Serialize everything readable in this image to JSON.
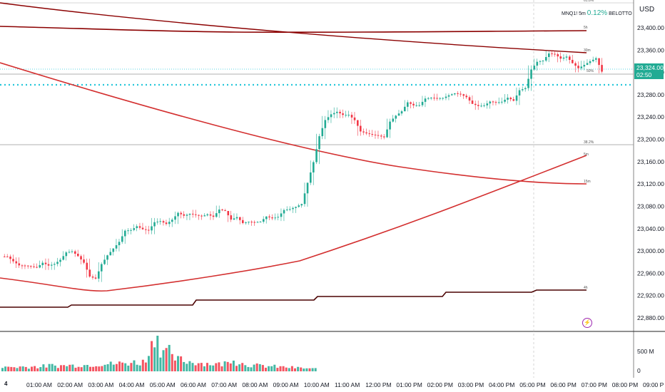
{
  "chart_data": {
    "type": "candlestick",
    "symbol": "MNQ1! 5m",
    "change_pct": "0.12%",
    "indicator": "BELOTTO",
    "currency": "USD",
    "last_price": "23,324.00",
    "countdown": "02:50",
    "y_ticks": [
      "23,400.00",
      "23,360.00",
      "23,320.00",
      "23,280.00",
      "23,240.00",
      "23,200.00",
      "23,160.00",
      "23,120.00",
      "23,080.00",
      "23,040.00",
      "23,000.00",
      "22,960.00",
      "22,920.00",
      "22,880.00"
    ],
    "volume_ticks": [
      "500 M",
      "0"
    ],
    "x_ticks": [
      "4",
      "01:00 AM",
      "02:00 AM",
      "03:00 AM",
      "04:00 AM",
      "05:00 AM",
      "06:00 AM",
      "07:00 AM",
      "08:00 AM",
      "09:00 AM",
      "10:00 AM",
      "11:00 AM",
      "12:00 PM",
      "01:00 PM",
      "02:00 PM",
      "03:00 PM",
      "04:00 PM",
      "05:00 PM",
      "06:00 PM",
      "07:00 PM",
      "08:00 PM",
      "09:00 P"
    ],
    "level_labels": {
      "top": "61.8%",
      "fib382": "38.2%",
      "fib50": "50%"
    },
    "ma_labels": [
      "5h",
      "30m",
      "5m",
      "15m",
      "4h"
    ],
    "price_path": [
      [
        0,
        22990
      ],
      [
        2,
        22980
      ],
      [
        4,
        22970
      ],
      [
        6,
        22978
      ],
      [
        8,
        22982
      ],
      [
        10,
        22995
      ],
      [
        12,
        22990
      ],
      [
        14,
        22960
      ],
      [
        15,
        22945
      ],
      [
        16,
        22975
      ],
      [
        18,
        23005
      ],
      [
        20,
        23030
      ],
      [
        22,
        23045
      ],
      [
        24,
        23040
      ],
      [
        26,
        23050
      ],
      [
        28,
        23060
      ],
      [
        30,
        23070
      ],
      [
        32,
        23065
      ],
      [
        34,
        23060
      ],
      [
        36,
        23072
      ],
      [
        38,
        23062
      ],
      [
        40,
        23050
      ],
      [
        42,
        23055
      ],
      [
        44,
        23060
      ],
      [
        46,
        23068
      ],
      [
        48,
        23072
      ],
      [
        50,
        23090
      ],
      [
        52,
        23160
      ],
      [
        54,
        23240
      ],
      [
        56,
        23250
      ],
      [
        58,
        23240
      ],
      [
        60,
        23215
      ],
      [
        62,
        23205
      ],
      [
        64,
        23210
      ],
      [
        66,
        23240
      ],
      [
        68,
        23260
      ],
      [
        70,
        23265
      ],
      [
        72,
        23270
      ],
      [
        74,
        23280
      ],
      [
        76,
        23285
      ],
      [
        78,
        23270
      ],
      [
        80,
        23265
      ],
      [
        82,
        23270
      ],
      [
        84,
        23262
      ],
      [
        86,
        23275
      ],
      [
        88,
        23295
      ],
      [
        89,
        23330
      ],
      [
        91,
        23340
      ],
      [
        93,
        23355
      ],
      [
        95,
        23345
      ],
      [
        96,
        23335
      ],
      [
        98,
        23330
      ],
      [
        100,
        23340
      ],
      [
        101,
        23325
      ]
    ],
    "volume_path": [
      60,
      70,
      65,
      72,
      68,
      75,
      70,
      80,
      90,
      85,
      88,
      95,
      92,
      100,
      98,
      105,
      110,
      120,
      115,
      118,
      125,
      130,
      140,
      135,
      150,
      400,
      600,
      350,
      300,
      200,
      180,
      160,
      150,
      140,
      130,
      120,
      115,
      110,
      130,
      200,
      140,
      120,
      100,
      90,
      85,
      80,
      75,
      70,
      65,
      60,
      55,
      50,
      45,
      40
    ]
  }
}
